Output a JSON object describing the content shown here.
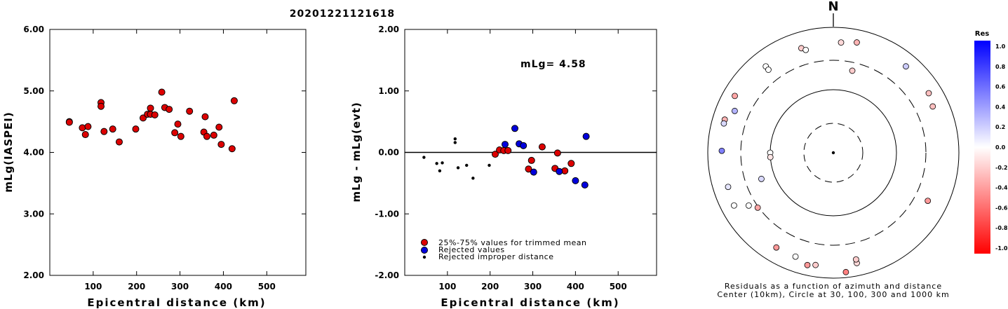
{
  "title": "20201221121618",
  "chart_data": [
    {
      "type": "scatter",
      "name": "mlg-vs-distance",
      "xlabel": "Epicentral distance (km)",
      "ylabel": "mLg(IASPEI)",
      "xlim": [
        0,
        590
      ],
      "ylim": [
        2.0,
        6.0
      ],
      "xticks": [
        100,
        200,
        300,
        400,
        500
      ],
      "yticks": [
        2.0,
        3.0,
        4.0,
        5.0,
        6.0
      ],
      "ytick_labels": [
        "2.00",
        "3.00",
        "4.00",
        "5.00",
        "6.00"
      ],
      "marker_color": "#dd0000",
      "points": [
        [
          45,
          4.5
        ],
        [
          45,
          4.49
        ],
        [
          75,
          4.4
        ],
        [
          82,
          4.29
        ],
        [
          88,
          4.42
        ],
        [
          118,
          4.81
        ],
        [
          118,
          4.75
        ],
        [
          125,
          4.34
        ],
        [
          145,
          4.38
        ],
        [
          160,
          4.17
        ],
        [
          198,
          4.38
        ],
        [
          215,
          4.56
        ],
        [
          225,
          4.62
        ],
        [
          232,
          4.72
        ],
        [
          232,
          4.62
        ],
        [
          242,
          4.61
        ],
        [
          258,
          4.98
        ],
        [
          265,
          4.73
        ],
        [
          275,
          4.7
        ],
        [
          288,
          4.32
        ],
        [
          295,
          4.46
        ],
        [
          302,
          4.26
        ],
        [
          322,
          4.67
        ],
        [
          355,
          4.33
        ],
        [
          358,
          4.58
        ],
        [
          362,
          4.26
        ],
        [
          378,
          4.28
        ],
        [
          390,
          4.41
        ],
        [
          395,
          4.13
        ],
        [
          420,
          4.06
        ],
        [
          425,
          4.84
        ]
      ]
    },
    {
      "type": "scatter",
      "name": "residual-vs-distance",
      "xlabel": "Epicentral distance (km)",
      "ylabel": "mLg - mLg(evt)",
      "xlim": [
        0,
        590
      ],
      "ylim": [
        -2.0,
        2.0
      ],
      "xticks": [
        100,
        200,
        300,
        400,
        500
      ],
      "yticks": [
        -2.0,
        -1.0,
        0.0,
        1.0,
        2.0
      ],
      "ytick_labels": [
        "-2.00",
        "-1.00",
        "0.00",
        "1.00",
        "2.00"
      ],
      "annotation": "mLg= 4.58",
      "legend": [
        {
          "label": "25%-75% values for trimmed mean",
          "color": "#dd0000"
        },
        {
          "label": "Rejected values",
          "color": "#0000dd"
        },
        {
          "label": "Rejected improper distance",
          "color": "#000000"
        }
      ],
      "series": [
        {
          "color": "#dd0000",
          "points": [
            [
              212,
              -0.03
            ],
            [
              222,
              0.04
            ],
            [
              232,
              0.03
            ],
            [
              242,
              0.03
            ],
            [
              290,
              -0.27
            ],
            [
              297,
              -0.13
            ],
            [
              322,
              0.09
            ],
            [
              352,
              -0.26
            ],
            [
              358,
              -0.01
            ],
            [
              375,
              -0.3
            ],
            [
              390,
              -0.18
            ]
          ]
        },
        {
          "color": "#0000dd",
          "points": [
            [
              235,
              0.13
            ],
            [
              258,
              0.39
            ],
            [
              268,
              0.14
            ],
            [
              278,
              0.11
            ],
            [
              302,
              -0.32
            ],
            [
              362,
              -0.31
            ],
            [
              400,
              -0.46
            ],
            [
              422,
              -0.53
            ],
            [
              425,
              0.26
            ]
          ]
        },
        {
          "color": "#000000",
          "points": [
            [
              45,
              -0.08
            ],
            [
              75,
              -0.18
            ],
            [
              82,
              -0.3
            ],
            [
              88,
              -0.17
            ],
            [
              118,
              0.22
            ],
            [
              118,
              0.16
            ],
            [
              125,
              -0.25
            ],
            [
              145,
              -0.21
            ],
            [
              160,
              -0.42
            ],
            [
              198,
              -0.21
            ]
          ]
        }
      ]
    },
    {
      "type": "scatter",
      "name": "azimuth-distance-polar",
      "north_label": "N",
      "caption_line1": "Residuals as a function of azimuth and distance",
      "caption_line2": "Center (10km), Circle at 30, 100, 300 and 1000 km",
      "rings_km": [
        30,
        100,
        300,
        1000
      ],
      "colorbar": {
        "title": "Res",
        "ticks": [
          "1.0",
          "0.8",
          "0.6",
          "0.4",
          "0.2",
          "0.0",
          "-0.2",
          "-0.4",
          "-0.6",
          "-0.8",
          "-1.0"
        ]
      },
      "stations": [
        {
          "az": 12,
          "dist": 630,
          "res": -0.3
        },
        {
          "az": 4,
          "dist": 580,
          "res": -0.15
        },
        {
          "az": 343,
          "dist": 555,
          "res": -0.2
        },
        {
          "az": 345,
          "dist": 500,
          "res": 0.0
        },
        {
          "az": 322,
          "dist": 560,
          "res": 0.0
        },
        {
          "az": 322,
          "dist": 480,
          "res": 0.0
        },
        {
          "az": 40,
          "dist": 630,
          "res": 0.2
        },
        {
          "az": 58,
          "dist": 620,
          "res": -0.25
        },
        {
          "az": 65,
          "dist": 560,
          "res": -0.25
        },
        {
          "az": 13,
          "dist": 220,
          "res": -0.2
        },
        {
          "az": 300,
          "dist": 650,
          "res": -0.35
        },
        {
          "az": 287,
          "dist": 645,
          "res": -0.3
        },
        {
          "az": 285,
          "dist": 640,
          "res": 0.15
        },
        {
          "az": 293,
          "dist": 510,
          "res": 0.3
        },
        {
          "az": 271,
          "dist": 600,
          "res": 0.5
        },
        {
          "az": 252,
          "dist": 580,
          "res": 0.1
        },
        {
          "az": 242,
          "dist": 620,
          "res": 0.0
        },
        {
          "az": 270,
          "dist": 100,
          "res": 0.0
        },
        {
          "az": 266,
          "dist": 100,
          "res": -0.1
        },
        {
          "az": 250,
          "dist": 165,
          "res": 0.15
        },
        {
          "az": 238,
          "dist": 390,
          "res": 0.0
        },
        {
          "az": 234,
          "dist": 310,
          "res": -0.35
        },
        {
          "az": 211,
          "dist": 580,
          "res": -0.4
        },
        {
          "az": 200,
          "dist": 580,
          "res": 0.0
        },
        {
          "az": 193,
          "dist": 690,
          "res": -0.4
        },
        {
          "az": 189,
          "dist": 650,
          "res": -0.2
        },
        {
          "az": 168,
          "dist": 630,
          "res": -0.15
        },
        {
          "az": 168,
          "dist": 550,
          "res": -0.2
        },
        {
          "az": 174,
          "dist": 820,
          "res": -0.5
        },
        {
          "az": 117,
          "dist": 490,
          "res": -0.4
        }
      ]
    }
  ]
}
